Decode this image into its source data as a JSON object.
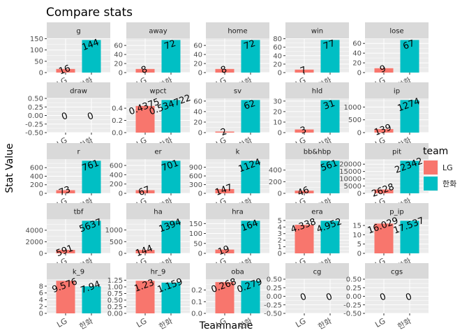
{
  "chart_data": {
    "type": "bar",
    "title": "Compare stats",
    "xlabel": "Teamname",
    "ylabel": "Stat Value",
    "categories": [
      "LG",
      "한화"
    ],
    "colors": [
      "#F8766D",
      "#00BFC4"
    ],
    "legend": {
      "title": "team",
      "placement": "right",
      "entries": [
        "LG",
        "한화"
      ]
    },
    "grid": true,
    "panels": [
      {
        "stat": "g",
        "values": [
          16,
          144
        ],
        "labels": [
          "16",
          "144"
        ],
        "ylim": [
          0,
          151.2
        ],
        "ticks": [
          0,
          50,
          100,
          150
        ]
      },
      {
        "stat": "away",
        "values": [
          8,
          72
        ],
        "labels": [
          "8",
          "72"
        ],
        "ylim": [
          0,
          75.6
        ],
        "ticks": [
          0,
          20,
          40,
          60
        ]
      },
      {
        "stat": "home",
        "values": [
          8,
          72
        ],
        "labels": [
          "8",
          "72"
        ],
        "ylim": [
          0,
          75.6
        ],
        "ticks": [
          0,
          20,
          40,
          60
        ]
      },
      {
        "stat": "win",
        "values": [
          7,
          77
        ],
        "labels": [
          "7",
          "77"
        ],
        "ylim": [
          0,
          80.85
        ],
        "ticks": [
          0,
          20,
          40,
          60,
          80
        ]
      },
      {
        "stat": "lose",
        "values": [
          9,
          67
        ],
        "labels": [
          "9",
          "67"
        ],
        "ylim": [
          0,
          70.35
        ],
        "ticks": [
          0,
          20,
          40,
          60
        ]
      },
      {
        "stat": "draw",
        "values": [
          0,
          0
        ],
        "labels": [
          "0",
          "0"
        ],
        "ylim": [
          -0.5,
          0.5
        ],
        "ticks": [
          -0.5,
          -0.25,
          0,
          0.25,
          0.5
        ],
        "tick_labels": [
          "-0.50",
          "-0.25",
          "0.00",
          "0.25",
          "0.50"
        ]
      },
      {
        "stat": "wpct",
        "values": [
          0.4375,
          0.5347
        ],
        "labels": [
          "0.4375",
          "0.534722"
        ],
        "ylim": [
          0,
          0.5614
        ],
        "ticks": [
          0,
          0.2,
          0.4
        ],
        "tick_labels": [
          "0.0",
          "0.2",
          "0.4"
        ]
      },
      {
        "stat": "sv",
        "values": [
          2,
          62
        ],
        "labels": [
          "2",
          "62"
        ],
        "ylim": [
          0,
          65.1
        ],
        "ticks": [
          0,
          20,
          40,
          60
        ]
      },
      {
        "stat": "hld",
        "values": [
          3,
          31
        ],
        "labels": [
          "3",
          "31"
        ],
        "ylim": [
          0,
          32.55
        ],
        "ticks": [
          0,
          10,
          20,
          30
        ]
      },
      {
        "stat": "ip",
        "values": [
          139,
          1274
        ],
        "labels": [
          "139",
          "1274"
        ],
        "ylim": [
          0,
          1337.7
        ],
        "ticks": [
          0,
          500,
          1000
        ]
      },
      {
        "stat": "r",
        "values": [
          73,
          761
        ],
        "labels": [
          "73",
          "761"
        ],
        "ylim": [
          0,
          799.05
        ],
        "ticks": [
          0,
          200,
          400,
          600
        ]
      },
      {
        "stat": "er",
        "values": [
          67,
          701
        ],
        "labels": [
          "67",
          "701"
        ],
        "ylim": [
          0,
          736.05
        ],
        "ticks": [
          0,
          200,
          400,
          600
        ]
      },
      {
        "stat": "k",
        "values": [
          147,
          1124
        ],
        "labels": [
          "147",
          "1124"
        ],
        "ylim": [
          0,
          1180.2
        ],
        "ticks": [
          0,
          300,
          600,
          900
        ]
      },
      {
        "stat": "bb&hbp",
        "values": [
          46,
          561
        ],
        "labels": [
          "46",
          "561"
        ],
        "ylim": [
          0,
          589.05
        ],
        "ticks": [
          0,
          200,
          400
        ]
      },
      {
        "stat": "pit",
        "values": [
          2628,
          22342
        ],
        "labels": [
          "2628",
          "22342"
        ],
        "ylim": [
          0,
          23459.1
        ],
        "ticks": [
          0,
          5000,
          10000,
          15000,
          20000
        ]
      },
      {
        "stat": "tbf",
        "values": [
          591,
          5637
        ],
        "labels": [
          "591",
          "5637"
        ],
        "ylim": [
          0,
          5918.85
        ],
        "ticks": [
          0,
          2000,
          4000
        ]
      },
      {
        "stat": "ha",
        "values": [
          144,
          1394
        ],
        "labels": [
          "144",
          "1394"
        ],
        "ylim": [
          0,
          1463.7
        ],
        "ticks": [
          0,
          500,
          1000
        ]
      },
      {
        "stat": "hra",
        "values": [
          19,
          164
        ],
        "labels": [
          "19",
          "164"
        ],
        "ylim": [
          0,
          172.2
        ],
        "ticks": [
          0,
          50,
          100,
          150
        ]
      },
      {
        "stat": "era",
        "values": [
          4.338,
          4.952
        ],
        "labels": [
          "4.338",
          "4.952"
        ],
        "ylim": [
          0,
          5.2
        ],
        "ticks": [
          0,
          1,
          2,
          3,
          4,
          5
        ]
      },
      {
        "stat": "p_ip",
        "values": [
          16.029,
          17.537
        ],
        "labels": [
          "16.029",
          "17.537"
        ],
        "ylim": [
          0,
          18.41
        ],
        "ticks": [
          0,
          5,
          10,
          15
        ]
      },
      {
        "stat": "k_9",
        "values": [
          9.576,
          7.94
        ],
        "labels": [
          "9.576",
          "7.94"
        ],
        "ylim": [
          0,
          10.05
        ],
        "ticks": [
          0,
          2,
          4,
          6,
          8
        ]
      },
      {
        "stat": "hr_9",
        "values": [
          1.23,
          1.159
        ],
        "labels": [
          "1.23",
          "1.159"
        ],
        "ylim": [
          0,
          1.29
        ],
        "ticks": [
          0,
          0.25,
          0.5,
          0.75,
          1,
          1.25
        ],
        "tick_labels": [
          "0.00",
          "0.25",
          "0.50",
          "0.75",
          "1.00",
          "1.25"
        ]
      },
      {
        "stat": "oba",
        "values": [
          0.268,
          0.279
        ],
        "labels": [
          "0.268",
          "0.279"
        ],
        "ylim": [
          0,
          0.293
        ],
        "ticks": [
          0,
          0.1,
          0.2
        ],
        "tick_labels": [
          "0.0",
          "0.1",
          "0.2"
        ]
      },
      {
        "stat": "cg",
        "values": [
          0,
          0
        ],
        "labels": [
          "0",
          "0"
        ],
        "ylim": [
          -0.5,
          0.5
        ],
        "ticks": [
          -0.5,
          -0.25,
          0,
          0.25,
          0.5
        ],
        "tick_labels": [
          "-0.50",
          "-0.25",
          "0.00",
          "0.25",
          "0.50"
        ]
      },
      {
        "stat": "cgs",
        "values": [
          0,
          0
        ],
        "labels": [
          "0",
          "0"
        ],
        "ylim": [
          -0.5,
          0.5
        ],
        "ticks": [
          -0.5,
          -0.25,
          0,
          0.25,
          0.5
        ],
        "tick_labels": [
          "-0.50",
          "-0.25",
          "0.00",
          "0.25",
          "0.50"
        ]
      }
    ]
  }
}
